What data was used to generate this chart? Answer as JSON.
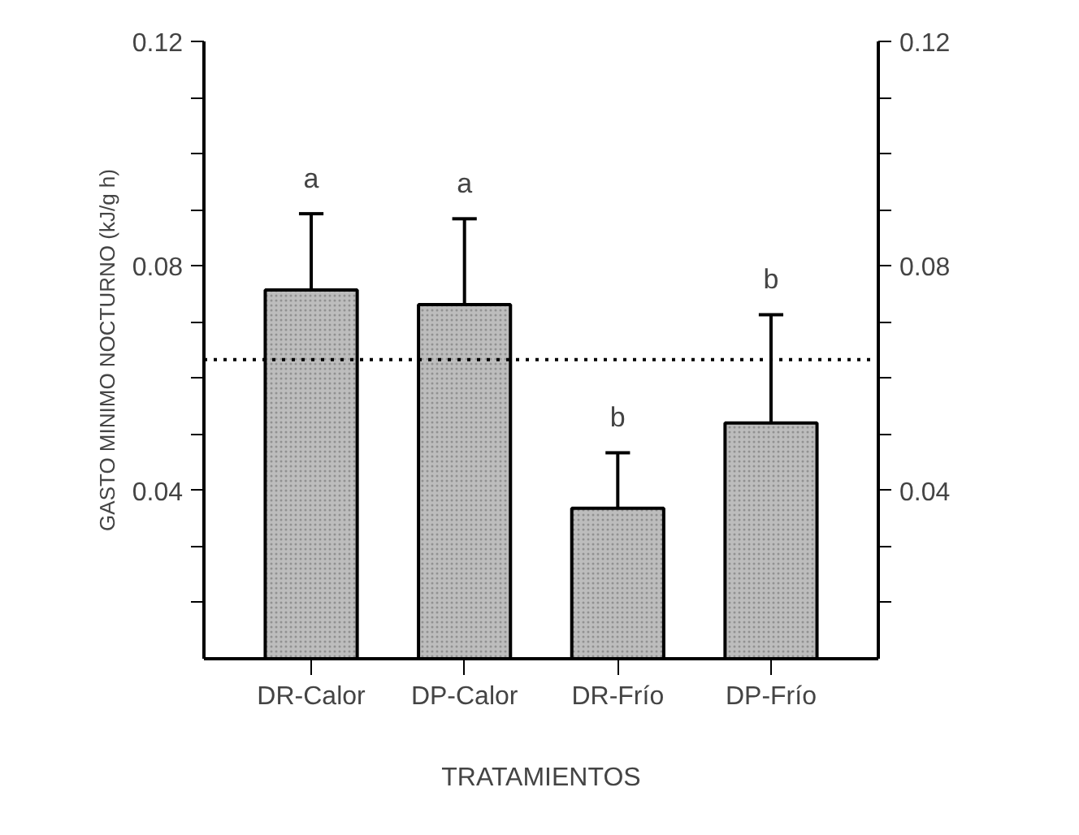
{
  "chart_data": {
    "type": "bar",
    "categories": [
      "DR-Calor",
      "DP-Calor",
      "DR-Frío",
      "DP-Frío"
    ],
    "values": [
      0.0757,
      0.0731,
      0.0368,
      0.052
    ],
    "color": "#bdbdbd",
    "errors": [
      [
        0.0757,
        0.0893
      ],
      [
        0.0731,
        0.0884
      ],
      [
        0.0368,
        0.0467
      ],
      [
        0.052,
        0.0713
      ]
    ],
    "xlabel": "TRATAMIENTOS",
    "ylabel": "GASTO MINIMO NOCTURNO (kJ/g h)",
    "ylim": [
      0.01,
      0.12
    ],
    "yticks": [
      {
        "value": 0.02,
        "label": null
      },
      {
        "value": 0.03,
        "label": null
      },
      {
        "value": 0.04,
        "label": "0.04"
      },
      {
        "value": 0.05,
        "label": null
      },
      {
        "value": 0.06,
        "label": null
      },
      {
        "value": 0.07,
        "label": null
      },
      {
        "value": 0.08,
        "label": "0.08"
      },
      {
        "value": 0.09,
        "label": null
      },
      {
        "value": 0.1,
        "label": null
      },
      {
        "value": 0.11,
        "label": null
      },
      {
        "value": 0.12,
        "label": "0.12"
      }
    ],
    "y2lim": [
      0.01,
      0.12
    ],
    "y2ticks": [
      {
        "value": 0.02,
        "label": null
      },
      {
        "value": 0.03,
        "label": null
      },
      {
        "value": 0.04,
        "label": "0.04"
      },
      {
        "value": 0.05,
        "label": null
      },
      {
        "value": 0.06,
        "label": null
      },
      {
        "value": 0.07,
        "label": null
      },
      {
        "value": 0.08,
        "label": "0.08"
      },
      {
        "value": 0.09,
        "label": null
      },
      {
        "value": 0.1,
        "label": null
      },
      {
        "value": 0.11,
        "label": null
      },
      {
        "value": 0.12,
        "label": "0.12"
      }
    ],
    "ref_lines": [
      {
        "axis": "y",
        "value": 0.0633,
        "color": "#000000",
        "line_style": "dotted"
      }
    ],
    "annotations": [
      {
        "text": "a",
        "x": "DR-Calor",
        "y": 0.0893
      },
      {
        "text": "a",
        "x": "DP-Calor",
        "y": 0.0884
      },
      {
        "text": "b",
        "x": "DR-Frío",
        "y": 0.0467
      },
      {
        "text": "b",
        "x": "DP-Frío",
        "y": 0.0713
      }
    ],
    "grid": false
  }
}
